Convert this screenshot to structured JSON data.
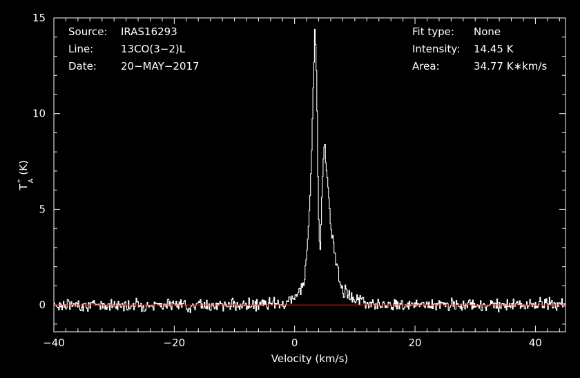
{
  "chart_data": {
    "type": "line",
    "info_left": [
      {
        "key": "Source:",
        "value": "IRAS16293"
      },
      {
        "key": "Line:",
        "value": "13CO(3−2)L"
      },
      {
        "key": "Date:",
        "value": "20−MAY−2017"
      }
    ],
    "info_right": [
      {
        "key": "Fit type:",
        "value": "None"
      },
      {
        "key": "Intensity:",
        "value": "14.45 K"
      },
      {
        "key": "Area:",
        "value": "34.77 K∗km/s"
      }
    ],
    "xlabel": "Velocity (km/s)",
    "ylabel_main": "T",
    "ylabel_sup": "*",
    "ylabel_sub": "A",
    "ylabel_unit": "(K)",
    "xlim": [
      -40,
      45
    ],
    "ylim": [
      -1.4,
      15
    ],
    "xticks": [
      {
        "v": -40,
        "label": "−40"
      },
      {
        "v": -20,
        "label": "−20"
      },
      {
        "v": 0,
        "label": "0"
      },
      {
        "v": 20,
        "label": "20"
      },
      {
        "v": 40,
        "label": "40"
      }
    ],
    "yticks": [
      {
        "v": 0,
        "label": "0"
      },
      {
        "v": 5,
        "label": "5"
      },
      {
        "v": 10,
        "label": "10"
      },
      {
        "v": 15,
        "label": "15"
      }
    ],
    "baseline": 0,
    "colors": {
      "spectrum": "#ffffff",
      "baseline": "#d21e1e",
      "frame": "#ffffff"
    },
    "series": [
      {
        "points": [
          [
            -2,
            0.0
          ],
          [
            -1,
            0.2
          ],
          [
            0,
            0.4
          ],
          [
            1,
            0.9
          ],
          [
            1.5,
            1.4
          ],
          [
            2,
            2.7
          ],
          [
            2.5,
            5.5
          ],
          [
            3,
            11.0
          ],
          [
            3.3,
            14.45
          ],
          [
            3.6,
            12.0
          ],
          [
            3.8,
            7.0
          ],
          [
            4.0,
            3.2
          ],
          [
            4.2,
            2.8
          ],
          [
            4.5,
            6.0
          ],
          [
            4.8,
            8.2
          ],
          [
            5.0,
            8.1
          ],
          [
            5.5,
            6.0
          ],
          [
            6.0,
            4.0
          ],
          [
            6.5,
            3.0
          ],
          [
            7,
            2.0
          ],
          [
            7.5,
            1.2
          ],
          [
            8,
            0.8
          ],
          [
            9,
            0.45
          ],
          [
            10,
            0.3
          ],
          [
            12,
            0.15
          ],
          [
            15,
            0.05
          ],
          [
            18,
            0.0
          ]
        ]
      }
    ],
    "noise_rms": 0.15
  }
}
